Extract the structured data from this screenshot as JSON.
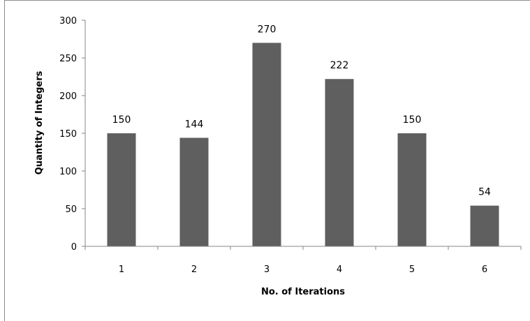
{
  "chart_data": {
    "type": "bar",
    "title": "",
    "xlabel": "No. of Iterations",
    "ylabel": "Quantity of Integers",
    "categories": [
      "1",
      "2",
      "3",
      "4",
      "5",
      "6"
    ],
    "values": [
      150,
      144,
      270,
      222,
      150,
      54
    ],
    "data_labels": [
      "150",
      "144",
      "270",
      "222",
      "150",
      "54"
    ],
    "y_ticks": [
      "0",
      "50",
      "100",
      "150",
      "200",
      "250",
      "300"
    ],
    "ylim": [
      0,
      300
    ],
    "grid": false,
    "legend": "none",
    "bar_color": "#5f5f5f",
    "axis_color": "#868686"
  }
}
